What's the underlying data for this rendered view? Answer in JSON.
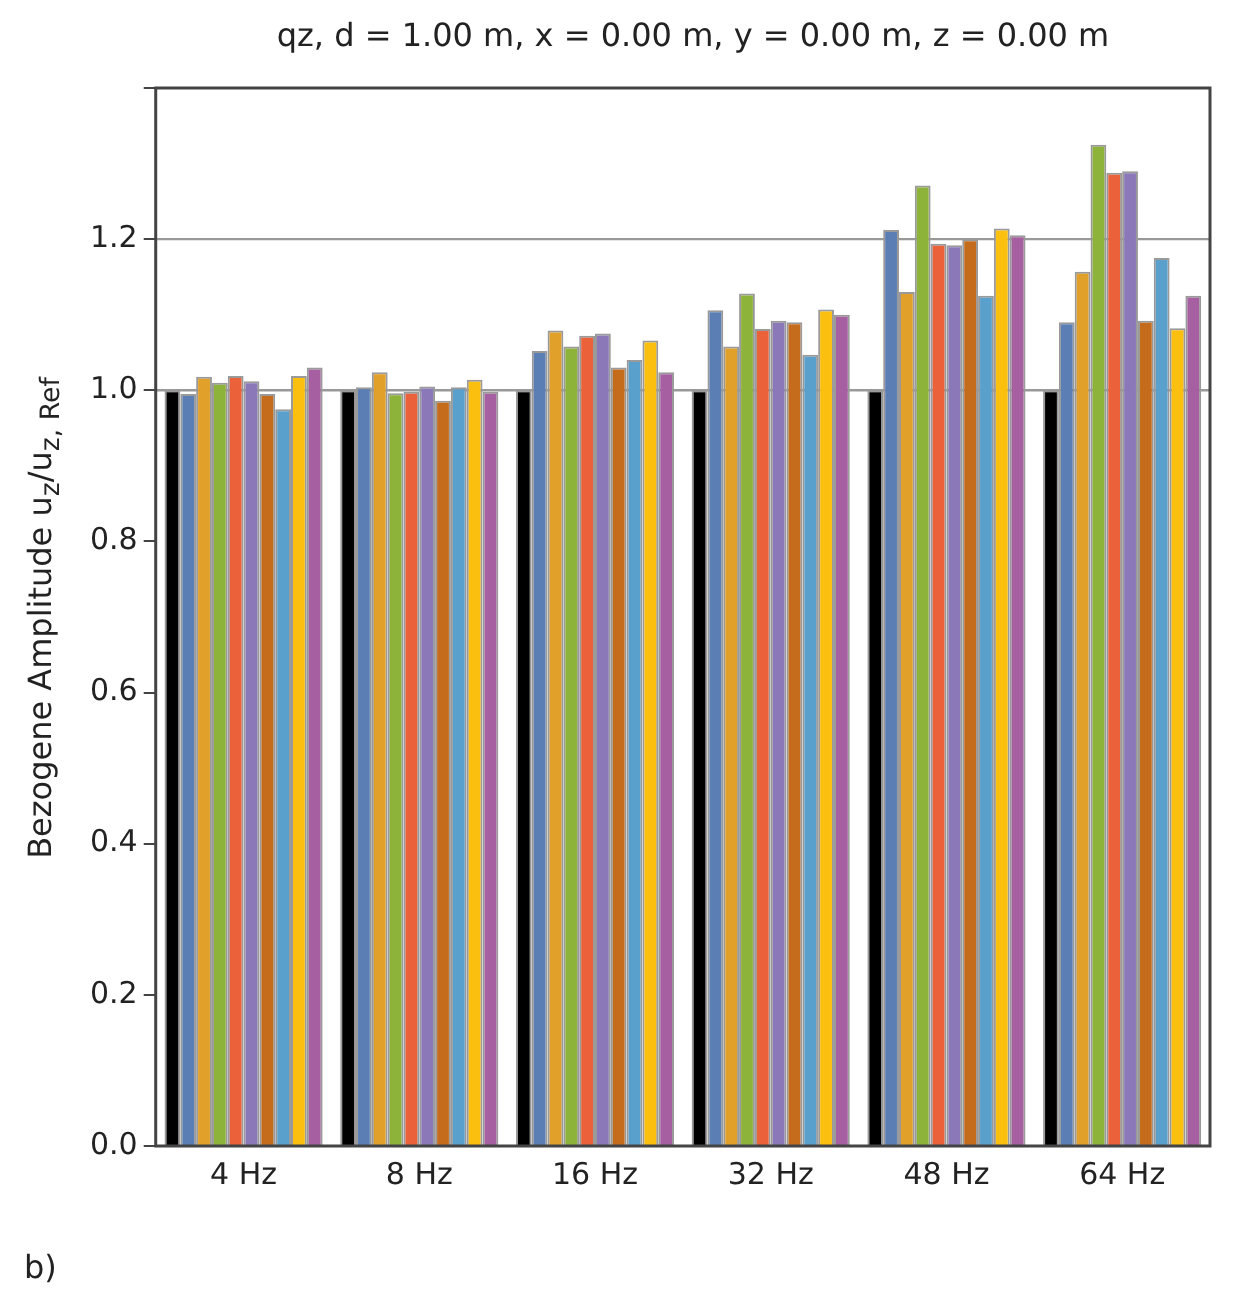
{
  "chart_data": {
    "type": "bar",
    "title": "qz, d = 1.00 m, x = 0.00 m, y = 0.00 m, z = 0.00 m",
    "ylabel": "Bezogene Amplitude u$_{z}$/u$_{z, Ref}$",
    "categories": [
      "4 Hz",
      "8 Hz",
      "16 Hz",
      "32 Hz",
      "48 Hz",
      "64 Hz"
    ],
    "series": [
      {
        "color": "#000000",
        "values": [
          1.0,
          1.0,
          1.0,
          1.0,
          1.0,
          1.0
        ]
      },
      {
        "color": "#5b7fb5",
        "values": [
          0.995,
          1.004,
          1.052,
          1.106,
          1.212,
          1.09
        ]
      },
      {
        "color": "#e0a02a",
        "values": [
          1.018,
          1.024,
          1.079,
          1.058,
          1.13,
          1.157
        ]
      },
      {
        "color": "#8db33a",
        "values": [
          1.01,
          0.996,
          1.058,
          1.128,
          1.271,
          1.325
        ]
      },
      {
        "color": "#ea613a",
        "values": [
          1.019,
          0.998,
          1.072,
          1.081,
          1.194,
          1.288
        ]
      },
      {
        "color": "#8a78b8",
        "values": [
          1.012,
          1.005,
          1.075,
          1.092,
          1.192,
          1.29
        ]
      },
      {
        "color": "#c46c1c",
        "values": [
          0.995,
          0.986,
          1.03,
          1.09,
          1.2,
          1.092
        ]
      },
      {
        "color": "#5aa0cc",
        "values": [
          0.975,
          1.004,
          1.04,
          1.047,
          1.125,
          1.175
        ]
      },
      {
        "color": "#fbbf10",
        "values": [
          1.019,
          1.014,
          1.066,
          1.107,
          1.214,
          1.082
        ]
      },
      {
        "color": "#a65fa0",
        "values": [
          1.03,
          0.998,
          1.024,
          1.1,
          1.205,
          1.125
        ]
      }
    ],
    "ylim": [
      0,
      1.4
    ],
    "yticks": [
      {
        "value": 0,
        "label": "0.0"
      },
      {
        "value": 0.2,
        "label": "0.2"
      },
      {
        "value": 0.4,
        "label": "0.4"
      },
      {
        "value": 0.6,
        "label": "0.6"
      },
      {
        "value": 0.8,
        "label": "0.8"
      },
      {
        "value": 1.0,
        "label": "1.0"
      },
      {
        "value": 1.2,
        "label": "1.2"
      },
      {
        "value": 1.4,
        "label": null
      }
    ],
    "ref_lines": [
      {
        "axis": "y",
        "value": 1.0,
        "color": "#999999"
      },
      {
        "axis": "y",
        "value": 1.2,
        "color": "#999999"
      }
    ],
    "annotations": [
      "b)"
    ],
    "legend": false,
    "grid": false
  }
}
